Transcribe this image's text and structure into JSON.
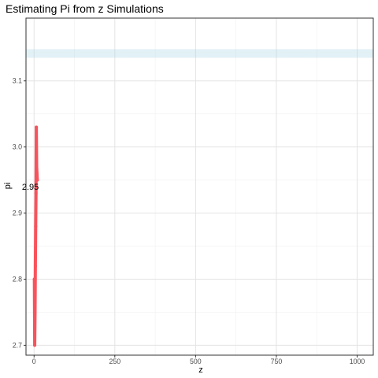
{
  "chart_data": {
    "type": "line",
    "title": "Estimating Pi from z Simulations",
    "xlabel": "z",
    "ylabel": "pi",
    "xlim": [
      -25,
      1050
    ],
    "ylim": [
      2.685,
      3.195
    ],
    "x_ticks": [
      0,
      250,
      500,
      750,
      1000
    ],
    "y_ticks": [
      2.7,
      2.8,
      2.9,
      3.0,
      3.1
    ],
    "x_tick_labels": [
      "0",
      "250",
      "500",
      "750",
      "1000"
    ],
    "y_tick_labels": [
      "2.7",
      "2.8",
      "2.9",
      "3.0",
      "3.1"
    ],
    "grid": true,
    "reference_band": {
      "ymin": 3.135,
      "ymax": 3.148,
      "color": "#add8e6"
    },
    "series": [
      {
        "color": "#f8535c",
        "x": [
          1,
          2,
          3,
          4,
          5,
          6,
          7,
          8,
          9,
          10
        ],
        "y": [
          2.8,
          2.7,
          2.75,
          2.82,
          2.88,
          2.93,
          3.03,
          2.97,
          2.96,
          2.95
        ]
      }
    ],
    "annotations": [
      {
        "text": "2.95",
        "x": -1,
        "y": 2.94
      }
    ]
  }
}
